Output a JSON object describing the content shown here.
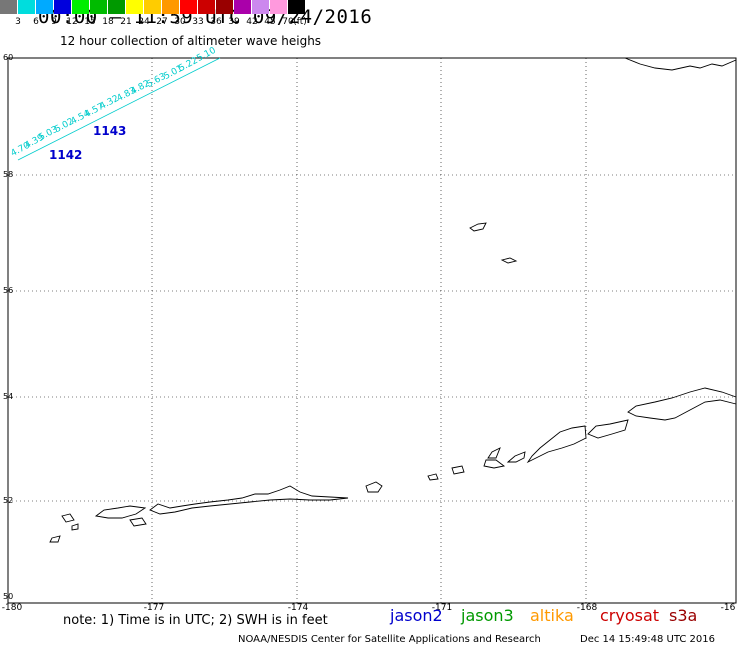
{
  "header": {
    "title": "00:00 – 11:59 UTC 09/24/2016",
    "subtitle": "12 hour collection of altimeter wave heighs"
  },
  "legend": {
    "unit": "(ft)",
    "items": [
      {
        "label": "3",
        "color": "#777777"
      },
      {
        "label": "6",
        "color": "#00dddd"
      },
      {
        "label": "9",
        "color": "#00aaff"
      },
      {
        "label": "12",
        "color": "#0000dd"
      },
      {
        "label": "15",
        "color": "#00ee00"
      },
      {
        "label": "18",
        "color": "#00bb00"
      },
      {
        "label": "21",
        "color": "#009900"
      },
      {
        "label": "24",
        "color": "#ffff00"
      },
      {
        "label": "27",
        "color": "#ffcc00"
      },
      {
        "label": "30",
        "color": "#ff9900"
      },
      {
        "label": "33",
        "color": "#ff0000"
      },
      {
        "label": "36",
        "color": "#cc0000"
      },
      {
        "label": "39",
        "color": "#990000"
      },
      {
        "label": "42",
        "color": "#aa00aa"
      },
      {
        "label": "45",
        "color": "#cc88ee"
      },
      {
        "label": "70",
        "color": "#ff99dd"
      },
      {
        "label": "",
        "color": "#000000"
      }
    ]
  },
  "axes": {
    "y_ticks": [
      "60",
      "58",
      "56",
      "54",
      "52",
      "50"
    ],
    "x_ticks": [
      "-180",
      "-177",
      "-174",
      "-171",
      "-168",
      "-16"
    ]
  },
  "passes": {
    "track_color": "#00cccc",
    "labels": [
      "1143",
      "1142"
    ],
    "swh_values": [
      "5.10",
      "5.22",
      "5.01",
      "5.63",
      "4.82",
      "4.83",
      "4.32",
      "4.57",
      "4.54",
      "5.02",
      "5.03",
      "4.39",
      "4.70"
    ]
  },
  "footer": {
    "note": "note: 1) Time is in UTC; 2) SWH is in feet",
    "satellites": [
      {
        "name": "jason2",
        "color": "#0000cc"
      },
      {
        "name": "jason3",
        "color": "#009900"
      },
      {
        "name": "altika",
        "color": "#ff9900"
      },
      {
        "name": "cryosat",
        "color": "#cc0000"
      },
      {
        "name": "s3a",
        "color": "#990000"
      }
    ],
    "credit": "NOAA/NESDIS Center for Satellite Applications and Research",
    "timestamp": "Dec 14 15:49:48 UTC 2016"
  }
}
